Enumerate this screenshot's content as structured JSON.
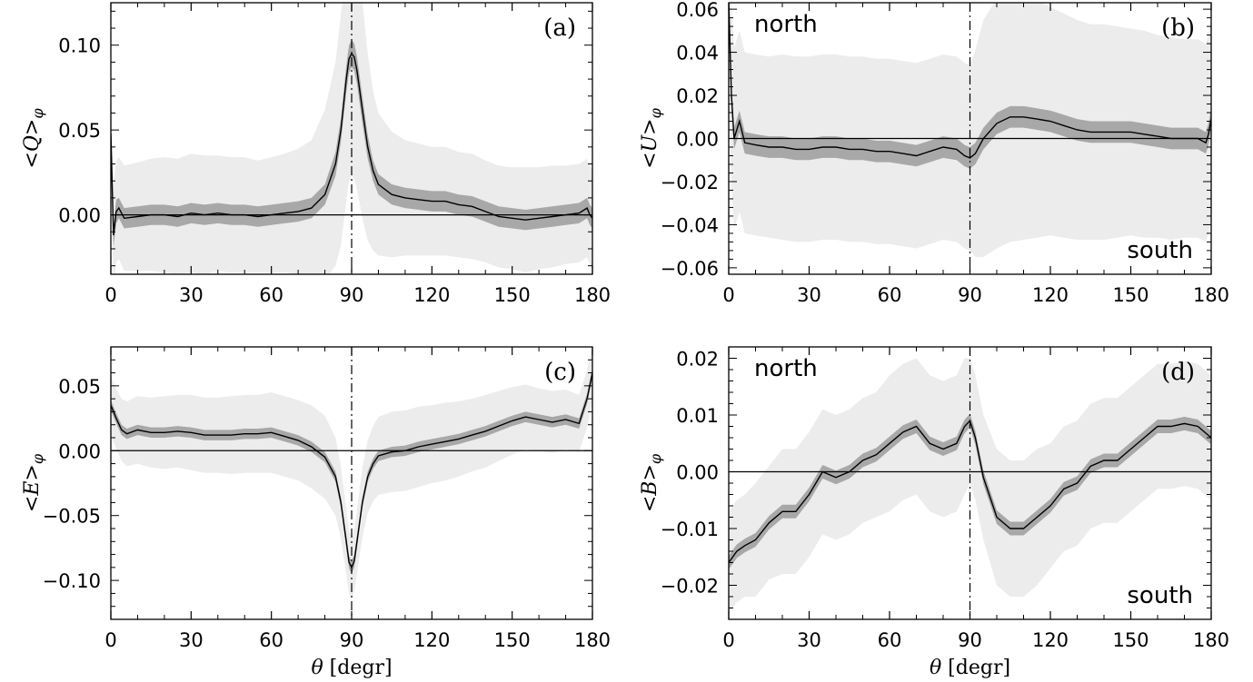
{
  "chart_data": [
    {
      "type": "line",
      "panel_label": "(a)",
      "ylabel": "<Q>φ",
      "xlabel": "",
      "xlim": [
        0,
        180
      ],
      "ylim": [
        -0.035,
        0.125
      ],
      "xticks": [
        "0",
        "30",
        "60",
        "90",
        "120",
        "150",
        "180"
      ],
      "yticks": [
        {
          "value": 0.0,
          "label": "0.00"
        },
        {
          "value": 0.05,
          "label": "0.05"
        },
        {
          "value": 0.1,
          "label": "0.10"
        }
      ],
      "zero_line": true,
      "vertical_marker_x": 90,
      "north_label": "",
      "south_label": "",
      "x": [
        0,
        1,
        2,
        3,
        5,
        10,
        15,
        20,
        25,
        30,
        35,
        40,
        45,
        50,
        55,
        60,
        65,
        70,
        75,
        80,
        84,
        86,
        88,
        89,
        90,
        91,
        92,
        94,
        96,
        98,
        100,
        105,
        110,
        115,
        120,
        125,
        130,
        135,
        140,
        145,
        150,
        155,
        160,
        165,
        170,
        175,
        178,
        179,
        180
      ],
      "mean": [
        0.048,
        -0.012,
        0.002,
        0.004,
        -0.002,
        -0.001,
        0.0,
        0.0,
        -0.001,
        0.001,
        0.0,
        0.001,
        0.0,
        0.0,
        -0.001,
        0.0,
        0.001,
        0.002,
        0.004,
        0.012,
        0.03,
        0.05,
        0.08,
        0.092,
        0.095,
        0.093,
        0.085,
        0.062,
        0.04,
        0.026,
        0.018,
        0.012,
        0.01,
        0.009,
        0.008,
        0.008,
        0.006,
        0.005,
        0.002,
        -0.001,
        -0.002,
        -0.003,
        -0.002,
        -0.001,
        0.0,
        0.001,
        0.004,
        0.0,
        -0.002
      ],
      "band_inner": [
        0.007,
        0.007,
        0.007,
        0.006,
        0.006,
        0.006,
        0.006,
        0.006,
        0.006,
        0.006,
        0.006,
        0.006,
        0.006,
        0.006,
        0.006,
        0.006,
        0.006,
        0.006,
        0.006,
        0.006,
        0.007,
        0.007,
        0.008,
        0.008,
        0.008,
        0.008,
        0.008,
        0.008,
        0.007,
        0.006,
        0.006,
        0.006,
        0.006,
        0.006,
        0.006,
        0.006,
        0.006,
        0.006,
        0.006,
        0.006,
        0.006,
        0.006,
        0.006,
        0.006,
        0.006,
        0.006,
        0.006,
        0.006,
        0.006
      ],
      "band_outer": [
        0.03,
        0.03,
        0.03,
        0.03,
        0.031,
        0.032,
        0.033,
        0.034,
        0.034,
        0.035,
        0.035,
        0.034,
        0.034,
        0.034,
        0.033,
        0.034,
        0.035,
        0.037,
        0.04,
        0.05,
        0.06,
        0.068,
        0.072,
        0.072,
        0.072,
        0.072,
        0.07,
        0.064,
        0.055,
        0.047,
        0.042,
        0.037,
        0.034,
        0.033,
        0.032,
        0.032,
        0.031,
        0.031,
        0.03,
        0.03,
        0.03,
        0.031,
        0.03,
        0.03,
        0.029,
        0.029,
        0.029,
        0.029,
        0.029
      ]
    },
    {
      "type": "line",
      "panel_label": "(b)",
      "ylabel": "<U>φ",
      "xlabel": "",
      "xlim": [
        0,
        180
      ],
      "ylim": [
        -0.063,
        0.063
      ],
      "xticks": [
        "0",
        "30",
        "60",
        "90",
        "120",
        "150",
        "180"
      ],
      "yticks": [
        {
          "value": -0.06,
          "label": "−0.06"
        },
        {
          "value": -0.04,
          "label": "−0.04"
        },
        {
          "value": -0.02,
          "label": "−0.02"
        },
        {
          "value": 0.0,
          "label": "0.00"
        },
        {
          "value": 0.02,
          "label": "0.02"
        },
        {
          "value": 0.04,
          "label": "0.04"
        },
        {
          "value": 0.06,
          "label": "0.06"
        }
      ],
      "zero_line": true,
      "vertical_marker_x": 90,
      "north_label": "north",
      "south_label": "south",
      "x": [
        0,
        1,
        2,
        4,
        6,
        10,
        15,
        20,
        25,
        30,
        35,
        40,
        45,
        50,
        55,
        60,
        65,
        70,
        75,
        80,
        85,
        88,
        90,
        92,
        95,
        100,
        105,
        110,
        115,
        120,
        125,
        130,
        135,
        140,
        145,
        150,
        155,
        160,
        165,
        170,
        175,
        178,
        179,
        180
      ],
      "mean": [
        0.063,
        0.02,
        0.0,
        0.008,
        -0.002,
        -0.003,
        -0.004,
        -0.004,
        -0.005,
        -0.005,
        -0.004,
        -0.004,
        -0.005,
        -0.005,
        -0.006,
        -0.006,
        -0.007,
        -0.008,
        -0.006,
        -0.004,
        -0.005,
        -0.008,
        -0.009,
        -0.007,
        0.0,
        0.007,
        0.01,
        0.01,
        0.009,
        0.008,
        0.006,
        0.004,
        0.003,
        0.003,
        0.003,
        0.003,
        0.002,
        0.001,
        0.0,
        0.0,
        0.0,
        -0.002,
        0.002,
        0.009
      ],
      "band_inner": [
        0.005,
        0.005,
        0.005,
        0.005,
        0.005,
        0.005,
        0.005,
        0.005,
        0.005,
        0.005,
        0.005,
        0.005,
        0.005,
        0.005,
        0.005,
        0.005,
        0.005,
        0.005,
        0.005,
        0.005,
        0.005,
        0.005,
        0.005,
        0.005,
        0.005,
        0.005,
        0.005,
        0.005,
        0.005,
        0.005,
        0.005,
        0.005,
        0.005,
        0.005,
        0.005,
        0.005,
        0.005,
        0.005,
        0.005,
        0.005,
        0.005,
        0.005,
        0.005,
        0.005
      ],
      "band_outer": [
        0.042,
        0.042,
        0.042,
        0.042,
        0.042,
        0.042,
        0.042,
        0.043,
        0.043,
        0.043,
        0.043,
        0.043,
        0.043,
        0.043,
        0.043,
        0.043,
        0.043,
        0.043,
        0.043,
        0.043,
        0.043,
        0.043,
        0.043,
        0.048,
        0.055,
        0.058,
        0.058,
        0.057,
        0.055,
        0.053,
        0.052,
        0.051,
        0.05,
        0.05,
        0.049,
        0.048,
        0.048,
        0.047,
        0.047,
        0.046,
        0.046,
        0.046,
        0.046,
        0.046
      ]
    },
    {
      "type": "line",
      "panel_label": "(c)",
      "ylabel": "<E>φ",
      "xlabel": "θ [degr]",
      "xlim": [
        0,
        180
      ],
      "ylim": [
        -0.13,
        0.08
      ],
      "xticks": [
        "0",
        "30",
        "60",
        "90",
        "120",
        "150",
        "180"
      ],
      "yticks": [
        {
          "value": -0.1,
          "label": "−0.10"
        },
        {
          "value": -0.05,
          "label": "−0.05"
        },
        {
          "value": 0.0,
          "label": "0.00"
        },
        {
          "value": 0.05,
          "label": "0.05"
        }
      ],
      "zero_line": true,
      "vertical_marker_x": 90,
      "north_label": "",
      "south_label": "",
      "x": [
        0,
        2,
        4,
        6,
        10,
        15,
        20,
        25,
        30,
        35,
        40,
        45,
        50,
        55,
        60,
        65,
        70,
        75,
        80,
        84,
        86,
        88,
        89,
        90,
        91,
        92,
        94,
        96,
        98,
        100,
        105,
        110,
        115,
        120,
        125,
        130,
        135,
        140,
        145,
        150,
        155,
        160,
        165,
        170,
        175,
        178,
        180
      ],
      "mean": [
        0.035,
        0.025,
        0.016,
        0.013,
        0.016,
        0.014,
        0.014,
        0.015,
        0.014,
        0.012,
        0.012,
        0.012,
        0.013,
        0.013,
        0.014,
        0.011,
        0.008,
        0.003,
        -0.005,
        -0.02,
        -0.04,
        -0.07,
        -0.086,
        -0.09,
        -0.085,
        -0.07,
        -0.04,
        -0.02,
        -0.01,
        -0.004,
        -0.001,
        0.0,
        0.003,
        0.005,
        0.007,
        0.009,
        0.012,
        0.015,
        0.019,
        0.023,
        0.026,
        0.024,
        0.022,
        0.024,
        0.021,
        0.04,
        0.06
      ],
      "band_inner": [
        0.004,
        0.004,
        0.004,
        0.004,
        0.004,
        0.004,
        0.004,
        0.004,
        0.004,
        0.004,
        0.004,
        0.004,
        0.004,
        0.004,
        0.004,
        0.004,
        0.004,
        0.004,
        0.004,
        0.004,
        0.004,
        0.005,
        0.005,
        0.005,
        0.005,
        0.005,
        0.004,
        0.004,
        0.004,
        0.004,
        0.004,
        0.004,
        0.004,
        0.004,
        0.004,
        0.004,
        0.004,
        0.004,
        0.004,
        0.004,
        0.004,
        0.004,
        0.004,
        0.004,
        0.004,
        0.004,
        0.004
      ],
      "band_outer": [
        0.023,
        0.023,
        0.024,
        0.025,
        0.026,
        0.027,
        0.028,
        0.028,
        0.029,
        0.029,
        0.029,
        0.03,
        0.03,
        0.03,
        0.031,
        0.031,
        0.031,
        0.032,
        0.032,
        0.03,
        0.028,
        0.025,
        0.024,
        0.024,
        0.024,
        0.025,
        0.027,
        0.028,
        0.029,
        0.03,
        0.031,
        0.031,
        0.031,
        0.03,
        0.03,
        0.029,
        0.028,
        0.028,
        0.027,
        0.026,
        0.025,
        0.024,
        0.024,
        0.023,
        0.022,
        0.022,
        0.022
      ]
    },
    {
      "type": "line",
      "panel_label": "(d)",
      "ylabel": "<B>φ",
      "xlabel": "θ [degr]",
      "xlim": [
        0,
        180
      ],
      "ylim": [
        -0.026,
        0.022
      ],
      "xticks": [
        "0",
        "30",
        "60",
        "90",
        "120",
        "150",
        "180"
      ],
      "yticks": [
        {
          "value": -0.02,
          "label": "−0.02"
        },
        {
          "value": -0.01,
          "label": "−0.01"
        },
        {
          "value": 0.0,
          "label": "0.00"
        },
        {
          "value": 0.01,
          "label": "0.01"
        },
        {
          "value": 0.02,
          "label": "0.02"
        }
      ],
      "zero_line": true,
      "vertical_marker_x": 90,
      "north_label": "north",
      "south_label": "south",
      "x": [
        0,
        3,
        6,
        10,
        15,
        20,
        25,
        30,
        35,
        40,
        45,
        50,
        55,
        60,
        65,
        70,
        75,
        80,
        85,
        88,
        90,
        92,
        95,
        100,
        105,
        110,
        115,
        120,
        125,
        130,
        135,
        140,
        145,
        150,
        155,
        160,
        165,
        170,
        175,
        180
      ],
      "mean": [
        -0.016,
        -0.014,
        -0.013,
        -0.012,
        -0.009,
        -0.007,
        -0.007,
        -0.004,
        0.0,
        -0.001,
        0.0,
        0.002,
        0.003,
        0.005,
        0.007,
        0.008,
        0.005,
        0.004,
        0.005,
        0.008,
        0.009,
        0.006,
        -0.001,
        -0.008,
        -0.01,
        -0.01,
        -0.008,
        -0.006,
        -0.003,
        -0.002,
        0.001,
        0.002,
        0.002,
        0.004,
        0.006,
        0.008,
        0.008,
        0.0085,
        0.008,
        0.006
      ],
      "band_inner": [
        0.0012,
        0.0012,
        0.0012,
        0.0012,
        0.0012,
        0.0012,
        0.0012,
        0.0012,
        0.0012,
        0.0012,
        0.0012,
        0.0012,
        0.0012,
        0.0012,
        0.0012,
        0.0012,
        0.0012,
        0.0012,
        0.0012,
        0.0012,
        0.0012,
        0.0012,
        0.0012,
        0.0012,
        0.0012,
        0.0012,
        0.0012,
        0.0012,
        0.0012,
        0.0012,
        0.0012,
        0.0012,
        0.0012,
        0.0012,
        0.0012,
        0.0012,
        0.0012,
        0.0012,
        0.0012,
        0.0012
      ],
      "band_outer": [
        0.009,
        0.009,
        0.009,
        0.01,
        0.01,
        0.011,
        0.011,
        0.011,
        0.011,
        0.011,
        0.011,
        0.011,
        0.011,
        0.012,
        0.012,
        0.012,
        0.012,
        0.012,
        0.012,
        0.012,
        0.011,
        0.011,
        0.011,
        0.012,
        0.012,
        0.012,
        0.012,
        0.011,
        0.011,
        0.011,
        0.011,
        0.011,
        0.011,
        0.011,
        0.011,
        0.011,
        0.011,
        0.011,
        0.011,
        0.011
      ]
    }
  ],
  "colors": {
    "outer_band": "#ececec",
    "inner_band": "#a8a8a8",
    "line": "#000000",
    "axes": "#000000"
  }
}
